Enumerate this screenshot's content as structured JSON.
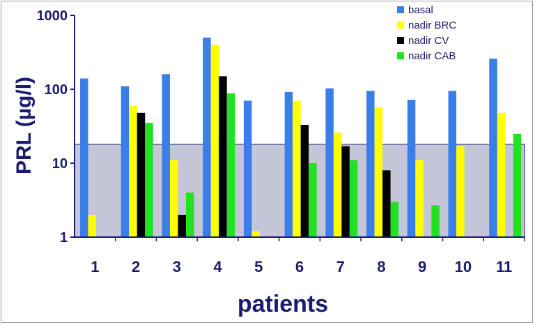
{
  "chart_data": {
    "type": "bar",
    "xlabel": "patients",
    "ylabel": "PRL (µg/l)",
    "yscale": "log",
    "ylim": [
      1,
      1000
    ],
    "yticks": [
      1,
      10,
      100,
      1000
    ],
    "categories": [
      "1",
      "2",
      "3",
      "4",
      "5",
      "6",
      "7",
      "8",
      "9",
      "10",
      "11"
    ],
    "shaded_band": [
      1,
      18
    ],
    "legend_position": "top-right",
    "series": [
      {
        "name": "basal",
        "color": "#3a7ee8",
        "values": [
          140,
          110,
          160,
          500,
          70,
          92,
          103,
          95,
          72,
          95,
          260
        ]
      },
      {
        "name": "nadir BRC",
        "color": "#ffff00",
        "values": [
          2,
          60,
          11,
          400,
          1.2,
          70,
          26,
          57,
          11,
          17,
          48
        ]
      },
      {
        "name": "nadir CV",
        "color": "#000000",
        "values": [
          null,
          48,
          2,
          150,
          null,
          33,
          17,
          8,
          null,
          null,
          null
        ]
      },
      {
        "name": "nadir CAB",
        "color": "#22e022",
        "values": [
          null,
          35,
          4,
          88,
          null,
          10,
          11,
          3,
          2.7,
          null,
          25
        ]
      }
    ]
  }
}
